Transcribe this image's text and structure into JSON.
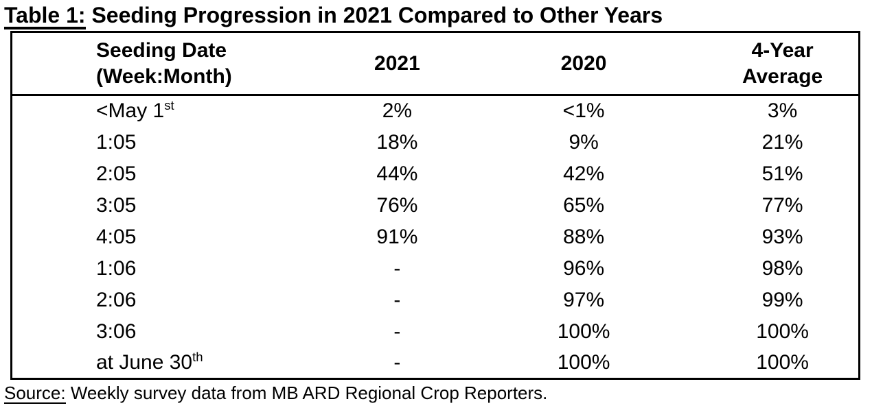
{
  "title": {
    "prefix": "Table 1:",
    "rest": " Seeding Progression in 2021 Compared to Other Years"
  },
  "table": {
    "columns": [
      {
        "id": "seeding-date",
        "lines": [
          "Seeding Date",
          "(Week:Month)"
        ]
      },
      {
        "id": "year-2021",
        "lines": [
          "2021"
        ]
      },
      {
        "id": "year-2020",
        "lines": [
          "2020"
        ]
      },
      {
        "id": "four-year-average",
        "lines": [
          "4-Year",
          "Average"
        ]
      }
    ],
    "rows": [
      {
        "date": "<May 1",
        "date_sup": "st",
        "values": [
          "2%",
          "<1%",
          "3%"
        ]
      },
      {
        "date": "1:05",
        "date_sup": "",
        "values": [
          "18%",
          "9%",
          "21%"
        ]
      },
      {
        "date": "2:05",
        "date_sup": "",
        "values": [
          "44%",
          "42%",
          "51%"
        ]
      },
      {
        "date": "3:05",
        "date_sup": "",
        "values": [
          "76%",
          "65%",
          "77%"
        ]
      },
      {
        "date": "4:05",
        "date_sup": "",
        "values": [
          "91%",
          "88%",
          "93%"
        ]
      },
      {
        "date": "1:06",
        "date_sup": "",
        "values": [
          "-",
          "96%",
          "98%"
        ]
      },
      {
        "date": "2:06",
        "date_sup": "",
        "values": [
          "-",
          "97%",
          "99%"
        ]
      },
      {
        "date": "3:06",
        "date_sup": "",
        "values": [
          "-",
          "100%",
          "100%"
        ]
      },
      {
        "date": "at June 30",
        "date_sup": "th",
        "values": [
          "-",
          "100%",
          "100%"
        ]
      }
    ]
  },
  "footer": {
    "prefix": "Source:",
    "rest": " Weekly survey data from MB ARD Regional Crop Reporters."
  },
  "colors": {
    "text": "#000000",
    "background": "#ffffff",
    "border": "#000000"
  }
}
